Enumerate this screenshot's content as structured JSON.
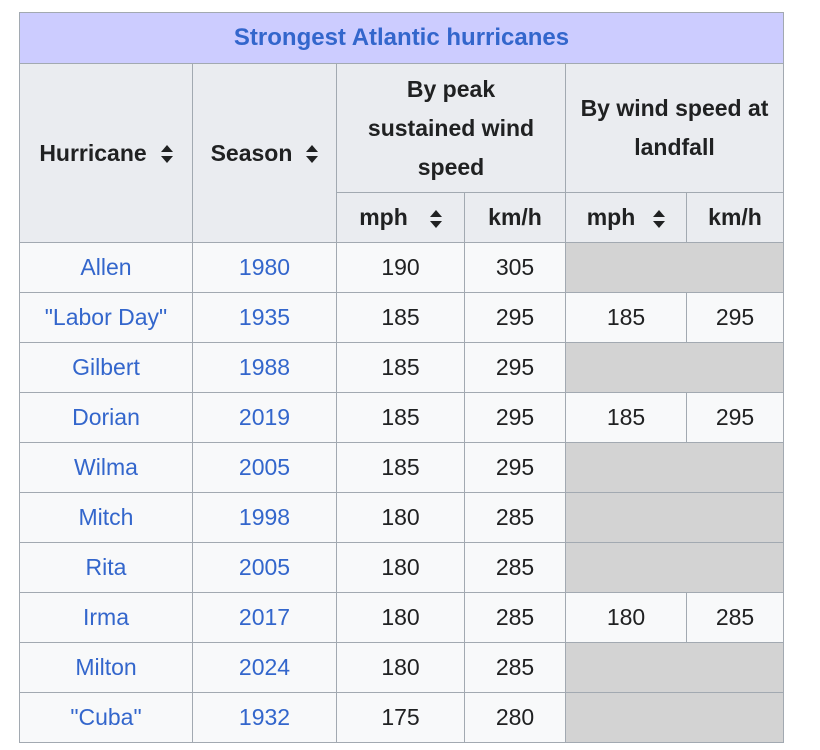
{
  "title": "Strongest Atlantic hurricanes",
  "headers": {
    "hurricane": "Hurricane",
    "season": "Season",
    "peak": "By peak sustained wind speed",
    "landfall": "By wind speed at landfall",
    "mph": "mph",
    "kmh": "km/h"
  },
  "icons": {
    "sort": "sort-arrows-icon"
  },
  "colors": {
    "title_bg": "#ccccff",
    "link": "#3366cc",
    "header_bg": "#eaecf0",
    "cell_bg": "#f8f9fa",
    "na_bg": "#d3d3d3"
  },
  "rows": [
    {
      "name": "Allen",
      "season": "1980",
      "peak_mph": "190",
      "peak_kmh": "305",
      "landfall_mph": "",
      "landfall_kmh": ""
    },
    {
      "name": "\"Labor Day\"",
      "season": "1935",
      "peak_mph": "185",
      "peak_kmh": "295",
      "landfall_mph": "185",
      "landfall_kmh": "295"
    },
    {
      "name": "Gilbert",
      "season": "1988",
      "peak_mph": "185",
      "peak_kmh": "295",
      "landfall_mph": "",
      "landfall_kmh": ""
    },
    {
      "name": "Dorian",
      "season": "2019",
      "peak_mph": "185",
      "peak_kmh": "295",
      "landfall_mph": "185",
      "landfall_kmh": "295"
    },
    {
      "name": "Wilma",
      "season": "2005",
      "peak_mph": "185",
      "peak_kmh": "295",
      "landfall_mph": "",
      "landfall_kmh": ""
    },
    {
      "name": "Mitch",
      "season": "1998",
      "peak_mph": "180",
      "peak_kmh": "285",
      "landfall_mph": "",
      "landfall_kmh": ""
    },
    {
      "name": "Rita",
      "season": "2005",
      "peak_mph": "180",
      "peak_kmh": "285",
      "landfall_mph": "",
      "landfall_kmh": ""
    },
    {
      "name": "Irma",
      "season": "2017",
      "peak_mph": "180",
      "peak_kmh": "285",
      "landfall_mph": "180",
      "landfall_kmh": "285"
    },
    {
      "name": "Milton",
      "season": "2024",
      "peak_mph": "180",
      "peak_kmh": "285",
      "landfall_mph": "",
      "landfall_kmh": ""
    },
    {
      "name": "\"Cuba\"",
      "season": "1932",
      "peak_mph": "175",
      "peak_kmh": "280",
      "landfall_mph": "",
      "landfall_kmh": ""
    }
  ]
}
